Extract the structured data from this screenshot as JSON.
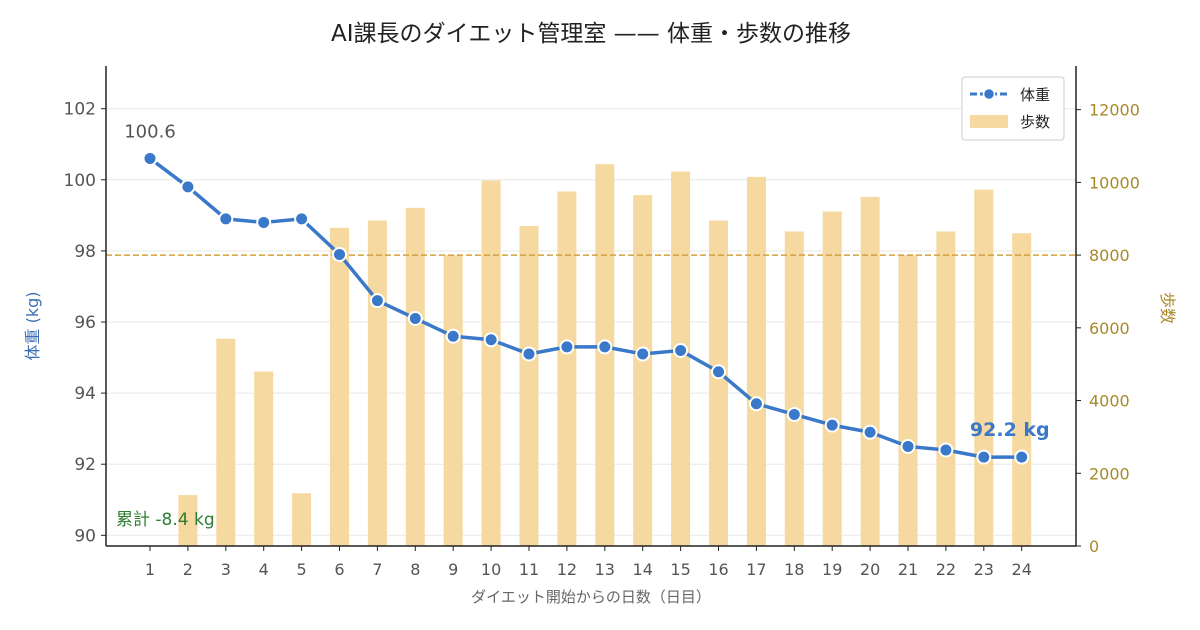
{
  "chart_data": {
    "type": "bar+line",
    "title": "AI課長のダイエット管理室 —— 体重・歩数の推移",
    "xlabel": "ダイエット開始からの日数（日目）",
    "ylabel_left": "体重 (kg)",
    "ylabel_right": "歩数",
    "x": [
      1,
      2,
      3,
      4,
      5,
      6,
      7,
      8,
      9,
      10,
      11,
      12,
      13,
      14,
      15,
      16,
      17,
      18,
      19,
      20,
      21,
      22,
      23,
      24
    ],
    "weight": {
      "name": "体重",
      "values": [
        100.6,
        99.8,
        98.9,
        98.8,
        98.9,
        97.9,
        96.6,
        96.1,
        95.6,
        95.5,
        95.1,
        95.3,
        95.3,
        95.1,
        95.2,
        94.6,
        93.7,
        93.4,
        93.1,
        92.9,
        92.5,
        92.4,
        92.2,
        92.2
      ],
      "color": "#3a78c9"
    },
    "steps": {
      "name": "歩数",
      "values": [
        null,
        1400,
        5700,
        4800,
        1450,
        8750,
        8950,
        9300,
        8000,
        10050,
        8800,
        9750,
        10500,
        9650,
        10300,
        8950,
        10150,
        8650,
        9200,
        9600,
        8000,
        8650,
        9800,
        8600
      ],
      "color": "#f5d9a0"
    },
    "steps_reference_line": 8000,
    "reference_line_color": "#d4a040",
    "ylim_left": [
      89.7,
      103.2
    ],
    "ylim_right": [
      0,
      13200
    ],
    "yticks_left": [
      90,
      92,
      94,
      96,
      98,
      100,
      102
    ],
    "yticks_right": [
      0,
      2000,
      4000,
      6000,
      8000,
      10000,
      12000
    ],
    "grid": "horizontal",
    "legend_position": "top-right",
    "annotations": {
      "start": "100.6",
      "end": "92.2 kg",
      "total": "累計 -8.4 kg"
    },
    "annotation_colors": {
      "end": "#3a78c9",
      "total": "#2e7d32"
    }
  }
}
